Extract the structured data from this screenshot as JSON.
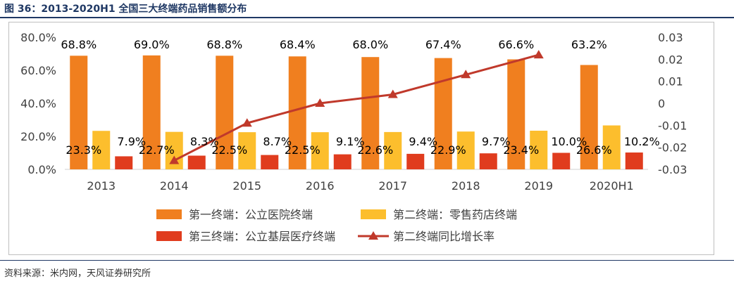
{
  "figure": {
    "title": "图 36：2013-2020H1 全国三大终端药品销售额分布",
    "source": "资料来源：米内网，天风证券研究所"
  },
  "colors": {
    "public_hospital": "#F07F1F",
    "retail_pharmacy": "#FCBE2D",
    "grassroots": "#E03C1E",
    "growth_line": "#C0392B",
    "title": "#1F3864"
  },
  "chart_data": {
    "type": "bar",
    "categories": [
      "2013",
      "2014",
      "2015",
      "2016",
      "2017",
      "2018",
      "2019",
      "2020H1"
    ],
    "series": [
      {
        "name": "第一终端：公立医院终端",
        "type": "bar",
        "axis": "left",
        "values": [
          68.8,
          69.0,
          68.8,
          68.4,
          68.0,
          67.4,
          66.6,
          63.2
        ],
        "labels": [
          "68.8%",
          "69.0%",
          "68.8%",
          "68.4%",
          "68.0%",
          "67.4%",
          "66.6%",
          "63.2%"
        ]
      },
      {
        "name": "第二终端：零售药店终端",
        "type": "bar",
        "axis": "left",
        "values": [
          23.3,
          22.7,
          22.5,
          22.5,
          22.6,
          22.9,
          23.4,
          26.6
        ],
        "labels": [
          "23.3%",
          "22.7%",
          "22.5%",
          "22.5%",
          "22.6%",
          "22.9%",
          "23.4%",
          "26.6%"
        ]
      },
      {
        "name": "第三终端：公立基层医疗终端",
        "type": "bar",
        "axis": "left",
        "values": [
          7.9,
          8.3,
          8.7,
          9.1,
          9.4,
          9.7,
          10.0,
          10.2
        ],
        "labels": [
          "7.9%",
          "8.3%",
          "8.7%",
          "9.1%",
          "9.4%",
          "9.7%",
          "10.0%",
          "10.2%"
        ]
      },
      {
        "name": "第二终端同比增长率",
        "type": "line",
        "axis": "right",
        "values": [
          null,
          -0.026,
          -0.009,
          0.0,
          0.004,
          0.013,
          0.022,
          null
        ]
      }
    ],
    "y_left": {
      "min": 0,
      "max": 80,
      "ticks": [
        0,
        20,
        40,
        60,
        80
      ],
      "tick_labels": [
        "0.0%",
        "20.0%",
        "40.0%",
        "60.0%",
        "80.0%"
      ]
    },
    "y_right": {
      "min": -0.03,
      "max": 0.03,
      "ticks": [
        -0.03,
        -0.02,
        -0.01,
        0,
        0.01,
        0.02,
        0.03
      ],
      "tick_labels": [
        "-0.03",
        "-0.02",
        "-0.01",
        "0",
        "0.01",
        "0.02",
        "0.03"
      ]
    },
    "grid": false,
    "legend_position": "bottom"
  }
}
